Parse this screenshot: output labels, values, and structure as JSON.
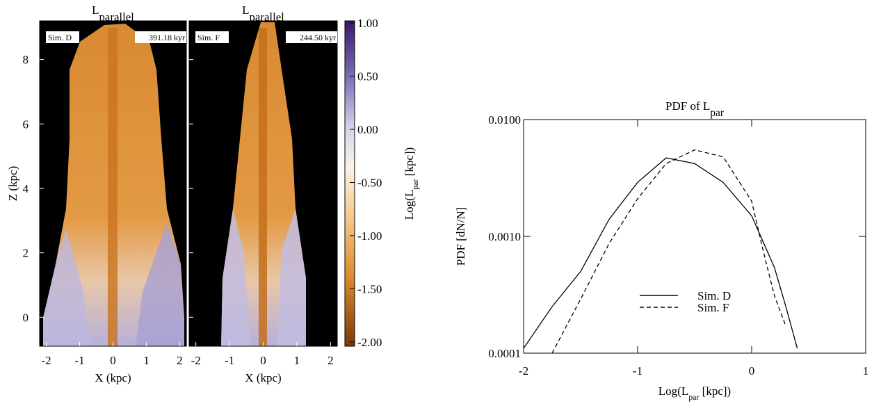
{
  "chart_data": [
    {
      "type": "image-panels",
      "ylabel": "Z (kpc)",
      "colorbar": {
        "lim": [
          -2.04,
          1.02
        ],
        "ticks": [
          {
            "value": 1,
            "label": "1.00"
          },
          {
            "value": 0.5,
            "label": "0.50"
          },
          {
            "value": 0,
            "label": "0.00"
          },
          {
            "value": -0.5,
            "label": "-0.50"
          },
          {
            "value": -1,
            "label": "-1.00"
          },
          {
            "value": -1.5,
            "label": "-1.50"
          },
          {
            "value": -2,
            "label": "-2.00"
          }
        ],
        "label": {
          "base": "Log(L",
          "sub": "par",
          "tail": " [kpc])"
        }
      },
      "panels": [
        {
          "title": {
            "base": "L",
            "sub": "parallel"
          },
          "label": "Sim. D",
          "time": "391.18 kyr",
          "xlabel": "X (kpc)",
          "xlim": [
            -2.2,
            2.2
          ],
          "ylim": [
            -0.9,
            9.2
          ],
          "xticks": [
            -2,
            -1,
            0,
            1,
            2
          ],
          "yticks": [
            0,
            2,
            4,
            6,
            8
          ]
        },
        {
          "title": {
            "base": "L",
            "sub": "parallel"
          },
          "label": "Sim. F",
          "time": "244.50 kyr",
          "xlabel": "X (kpc)",
          "xlim": [
            -2.2,
            2.2
          ],
          "ylim": [
            -0.9,
            9.2
          ],
          "xticks": [
            -2,
            -1,
            0,
            1,
            2
          ]
        }
      ]
    },
    {
      "type": "line",
      "title": {
        "base": "PDF of L",
        "sub": "par"
      },
      "xlabel": {
        "base": "Log(L",
        "sub": "par",
        "tail": " [kpc])"
      },
      "ylabel": "PDF [dN/N]",
      "log_y": true,
      "xlim": [
        -2,
        1
      ],
      "ylim": [
        0.0001,
        0.01
      ],
      "xticks": [
        -2,
        -1,
        0,
        1
      ],
      "yticks": [
        {
          "value": 0.0001,
          "label": "0.0001"
        },
        {
          "value": 0.001,
          "label": "0.0010"
        },
        {
          "value": 0.01,
          "label": "0.0100"
        }
      ],
      "legend": "lower center",
      "x": [
        -2,
        -1.75,
        -1.5,
        -1.25,
        -1,
        -0.75,
        -0.5,
        -0.25,
        0,
        0.1,
        0.2,
        0.3,
        0.4
      ],
      "series": [
        {
          "name": "Sim. D",
          "color": "#000000",
          "dash": "solid",
          "values": [
            0.00011,
            0.00025,
            0.0005,
            0.0014,
            0.0029,
            0.0047,
            0.0042,
            0.0029,
            0.0015,
            0.0009,
            0.00054,
            0.00025,
            0.00011
          ]
        },
        {
          "name": "Sim. F",
          "color": "#000000",
          "dash": "dashed",
          "values": [
            null,
            0.0001,
            0.00029,
            0.00087,
            0.0021,
            0.0042,
            0.0055,
            0.0048,
            0.002,
            0.00076,
            0.00031,
            0.00017,
            null
          ]
        }
      ]
    }
  ]
}
